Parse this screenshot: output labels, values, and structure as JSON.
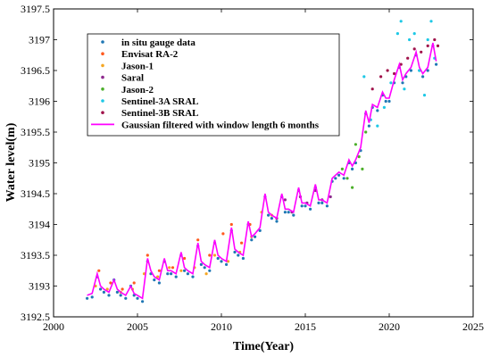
{
  "chart_data": {
    "type": "scatter",
    "xlabel": "Time(Year)",
    "ylabel": "Water level(m)",
    "xlim": [
      2000,
      2025
    ],
    "ylim": [
      3192.5,
      3197.5
    ],
    "xticks": [
      2000,
      2005,
      2010,
      2015,
      2020,
      2025
    ],
    "yticks": [
      3192.5,
      3193,
      3193.5,
      3194,
      3194.5,
      3195,
      3195.5,
      3196,
      3196.5,
      3197,
      3197.5
    ],
    "grid": false,
    "legend_position": "top-left",
    "series": [
      {
        "name": "in situ gauge data",
        "kind": "points",
        "color": "#1f77b4",
        "x": [
          2002.0,
          2002.3,
          2002.6,
          2002.8,
          2003.0,
          2003.3,
          2003.6,
          2003.8,
          2004.0,
          2004.3,
          2004.6,
          2004.8,
          2005.0,
          2005.3,
          2005.6,
          2005.8,
          2006.0,
          2006.3,
          2006.6,
          2006.8,
          2007.0,
          2007.3,
          2007.6,
          2007.8,
          2008.0,
          2008.3,
          2008.6,
          2008.8,
          2009.0,
          2009.3,
          2009.6,
          2009.8,
          2010.0,
          2010.3,
          2010.6,
          2010.8,
          2011.0,
          2011.3,
          2011.6,
          2011.8,
          2012.0,
          2012.3,
          2012.6,
          2012.8,
          2013.0,
          2013.3,
          2013.6,
          2013.8,
          2014.0,
          2014.3,
          2014.6,
          2014.8,
          2015.0,
          2015.3,
          2015.6,
          2015.8,
          2016.0,
          2016.3,
          2016.6,
          2016.8,
          2017.0,
          2017.3,
          2017.6,
          2017.8,
          2018.0,
          2018.3,
          2018.6,
          2018.8,
          2019.0,
          2019.3,
          2019.6,
          2019.8,
          2020.0,
          2020.3,
          2020.6,
          2020.8,
          2021.0,
          2021.3,
          2021.6,
          2021.8,
          2022.0,
          2022.3,
          2022.6,
          2022.8
        ],
        "y": [
          3192.8,
          3192.82,
          3193.15,
          3192.95,
          3192.9,
          3192.85,
          3193.1,
          3192.9,
          3192.85,
          3192.8,
          3193.0,
          3192.85,
          3192.8,
          3192.75,
          3193.4,
          3193.2,
          3193.1,
          3193.05,
          3193.4,
          3193.2,
          3193.2,
          3193.15,
          3193.5,
          3193.25,
          3193.2,
          3193.15,
          3193.65,
          3193.35,
          3193.3,
          3193.25,
          3193.7,
          3193.45,
          3193.4,
          3193.35,
          3193.9,
          3193.55,
          3193.5,
          3193.45,
          3194.0,
          3193.75,
          3193.8,
          3193.9,
          3194.45,
          3194.15,
          3194.1,
          3194.05,
          3194.45,
          3194.2,
          3194.2,
          3194.15,
          3194.55,
          3194.3,
          3194.3,
          3194.25,
          3194.6,
          3194.35,
          3194.35,
          3194.3,
          3194.7,
          3194.75,
          3194.8,
          3194.75,
          3195.0,
          3194.9,
          3195.0,
          3195.2,
          3195.8,
          3195.6,
          3195.9,
          3195.85,
          3196.1,
          3196.0,
          3196.0,
          3196.3,
          3196.55,
          3196.3,
          3196.4,
          3196.5,
          3196.75,
          3196.5,
          3196.4,
          3196.5,
          3196.9,
          3196.6
        ]
      },
      {
        "name": "Envisat RA-2",
        "kind": "points",
        "color": "#ff5a1f",
        "x": [
          2002.7,
          2003.4,
          2004.1,
          2004.8,
          2005.6,
          2006.3,
          2007.1,
          2007.8,
          2008.6,
          2009.3,
          2010.1,
          2010.6,
          2011.2,
          2011.7
        ],
        "y": [
          3193.25,
          3193.05,
          3192.95,
          3193.05,
          3193.5,
          3193.25,
          3193.3,
          3193.45,
          3193.75,
          3193.5,
          3193.85,
          3194.0,
          3193.7,
          3194.0
        ]
      },
      {
        "name": "Jason-1",
        "kind": "points",
        "color": "#f5a623",
        "x": [
          2002.5,
          2003.2,
          2004.0,
          2004.7,
          2005.4,
          2006.2,
          2006.9,
          2007.6,
          2008.4,
          2009.1,
          2009.6,
          2010.4,
          2011.1,
          2011.8,
          2012.4,
          2013.0
        ],
        "y": [
          3193.0,
          3192.95,
          3192.9,
          3192.95,
          3193.2,
          3193.15,
          3193.3,
          3193.25,
          3193.3,
          3193.2,
          3193.5,
          3193.4,
          3193.55,
          3193.8,
          3194.2,
          3194.15
        ]
      },
      {
        "name": "Saral",
        "kind": "points",
        "color": "#8e2a8e",
        "x": [
          2013.3,
          2013.8,
          2014.2,
          2014.7,
          2015.1,
          2015.6,
          2016.0,
          2016.5
        ],
        "y": [
          3194.1,
          3194.4,
          3194.2,
          3194.45,
          3194.35,
          3194.55,
          3194.4,
          3194.45
        ]
      },
      {
        "name": "Jason-2",
        "kind": "points",
        "color": "#4caf2a",
        "x": [
          2017.2,
          2017.5,
          2017.8,
          2018.0,
          2018.2,
          2018.4,
          2018.6
        ],
        "y": [
          3194.9,
          3194.75,
          3194.6,
          3195.3,
          3195.1,
          3194.9,
          3195.5
        ]
      },
      {
        "name": "Sentinel-3A SRAL",
        "kind": "points",
        "color": "#1ec8e6",
        "x": [
          2018.5,
          2018.9,
          2019.3,
          2019.7,
          2020.1,
          2020.5,
          2020.7,
          2020.9,
          2021.2,
          2021.5,
          2021.8,
          2022.1,
          2022.3,
          2022.5,
          2022.7
        ],
        "y": [
          3196.4,
          3195.7,
          3195.6,
          3195.9,
          3196.3,
          3197.1,
          3197.3,
          3196.2,
          3197.0,
          3197.1,
          3196.5,
          3196.1,
          3197.0,
          3197.3,
          3196.7
        ]
      },
      {
        "name": "Sentinel-3B SRAL",
        "kind": "points",
        "color": "#a0124a",
        "x": [
          2019.0,
          2019.5,
          2019.9,
          2020.3,
          2020.7,
          2021.1,
          2021.5,
          2021.9,
          2022.3,
          2022.7,
          2022.9
        ],
        "y": [
          3196.2,
          3196.4,
          3196.5,
          3196.45,
          3196.6,
          3196.7,
          3196.85,
          3196.8,
          3196.9,
          3197.0,
          3196.9
        ]
      },
      {
        "name": "Gaussian filtered with window length 6 months",
        "kind": "line",
        "color": "#ff00ff",
        "x": [
          2002.0,
          2002.3,
          2002.6,
          2002.8,
          2003.0,
          2003.3,
          2003.6,
          2003.8,
          2004.0,
          2004.3,
          2004.6,
          2004.8,
          2005.0,
          2005.3,
          2005.6,
          2005.8,
          2006.0,
          2006.3,
          2006.6,
          2006.8,
          2007.0,
          2007.3,
          2007.6,
          2007.8,
          2008.0,
          2008.3,
          2008.6,
          2008.8,
          2009.0,
          2009.3,
          2009.6,
          2009.8,
          2010.0,
          2010.3,
          2010.6,
          2010.8,
          2011.0,
          2011.3,
          2011.6,
          2011.8,
          2012.0,
          2012.3,
          2012.6,
          2012.8,
          2013.0,
          2013.3,
          2013.6,
          2013.8,
          2014.0,
          2014.3,
          2014.6,
          2014.8,
          2015.0,
          2015.3,
          2015.6,
          2015.8,
          2016.0,
          2016.3,
          2016.6,
          2016.8,
          2017.0,
          2017.3,
          2017.6,
          2017.8,
          2018.0,
          2018.3,
          2018.6,
          2018.8,
          2019.0,
          2019.3,
          2019.6,
          2019.8,
          2020.0,
          2020.3,
          2020.6,
          2020.8,
          2021.0,
          2021.3,
          2021.6,
          2021.8,
          2022.0,
          2022.3,
          2022.6,
          2022.8
        ],
        "y": [
          3192.85,
          3192.88,
          3193.2,
          3193.0,
          3192.95,
          3192.9,
          3193.1,
          3192.95,
          3192.9,
          3192.85,
          3193.0,
          3192.88,
          3192.85,
          3192.8,
          3193.45,
          3193.25,
          3193.15,
          3193.1,
          3193.45,
          3193.25,
          3193.25,
          3193.2,
          3193.55,
          3193.3,
          3193.25,
          3193.2,
          3193.7,
          3193.4,
          3193.35,
          3193.3,
          3193.75,
          3193.5,
          3193.45,
          3193.4,
          3193.95,
          3193.6,
          3193.55,
          3193.5,
          3194.05,
          3193.8,
          3193.85,
          3193.95,
          3194.5,
          3194.2,
          3194.15,
          3194.1,
          3194.5,
          3194.25,
          3194.25,
          3194.2,
          3194.6,
          3194.35,
          3194.35,
          3194.3,
          3194.65,
          3194.4,
          3194.4,
          3194.35,
          3194.75,
          3194.8,
          3194.85,
          3194.8,
          3195.05,
          3194.95,
          3195.05,
          3195.25,
          3195.85,
          3195.65,
          3195.95,
          3195.9,
          3196.15,
          3196.05,
          3196.05,
          3196.35,
          3196.6,
          3196.35,
          3196.45,
          3196.55,
          3196.8,
          3196.55,
          3196.45,
          3196.55,
          3196.95,
          3196.65
        ]
      }
    ]
  }
}
